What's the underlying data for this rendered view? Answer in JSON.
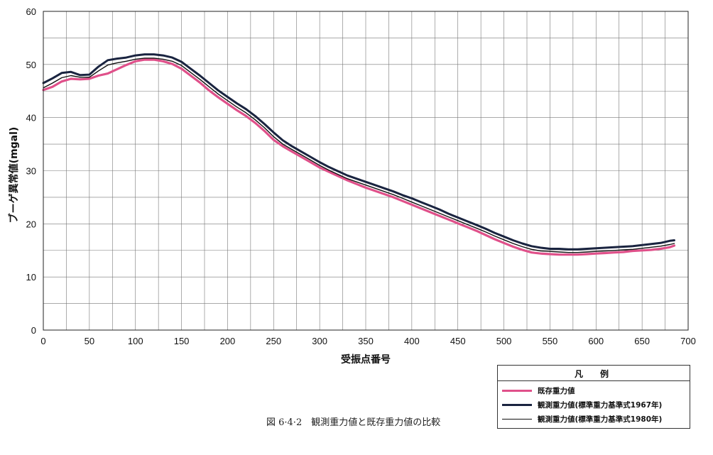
{
  "chart_data": {
    "type": "line",
    "xlabel": "受振点番号",
    "ylabel": "ブーゲ異常値(mgal)",
    "xlim": [
      0,
      700
    ],
    "ylim": [
      0,
      60
    ],
    "xticks": [
      0,
      50,
      100,
      150,
      200,
      250,
      300,
      350,
      400,
      450,
      500,
      550,
      600,
      650,
      700
    ],
    "yticks": [
      0,
      10,
      20,
      30,
      40,
      50,
      60
    ],
    "grid": true,
    "legend_title": "凡　例",
    "legend_position": "bottom-right",
    "series": [
      {
        "name": "既存重力値",
        "color": "#e0508a",
        "x": [
          0,
          10,
          20,
          30,
          40,
          50,
          60,
          70,
          80,
          90,
          100,
          110,
          120,
          130,
          140,
          150,
          160,
          170,
          180,
          190,
          200,
          210,
          220,
          230,
          240,
          250,
          260,
          270,
          280,
          290,
          300,
          310,
          320,
          330,
          340,
          350,
          360,
          370,
          380,
          390,
          400,
          410,
          420,
          430,
          440,
          450,
          460,
          470,
          480,
          490,
          500,
          510,
          520,
          530,
          540,
          550,
          560,
          570,
          580,
          590,
          600,
          610,
          620,
          630,
          640,
          650,
          660,
          670,
          680,
          685
        ],
        "y": [
          45.2,
          45.8,
          46.8,
          47.3,
          47.2,
          47.3,
          47.9,
          48.3,
          49.1,
          49.9,
          50.6,
          50.9,
          50.9,
          50.6,
          50.1,
          49.2,
          47.9,
          46.6,
          45.1,
          43.8,
          42.6,
          41.4,
          40.3,
          39.0,
          37.5,
          35.8,
          34.6,
          33.6,
          32.6,
          31.6,
          30.6,
          29.8,
          29.0,
          28.2,
          27.5,
          26.8,
          26.2,
          25.6,
          25.0,
          24.3,
          23.6,
          22.9,
          22.2,
          21.5,
          20.8,
          20.1,
          19.4,
          18.7,
          17.9,
          17.1,
          16.4,
          15.7,
          15.1,
          14.6,
          14.4,
          14.3,
          14.2,
          14.2,
          14.2,
          14.3,
          14.4,
          14.5,
          14.6,
          14.7,
          14.9,
          15.0,
          15.1,
          15.3,
          15.6,
          15.9
        ]
      },
      {
        "name": "観測重力値(標準重力基準式1967年)",
        "color": "#1a2440",
        "x": [
          0,
          10,
          20,
          30,
          40,
          50,
          60,
          70,
          80,
          90,
          100,
          110,
          120,
          130,
          140,
          150,
          160,
          170,
          180,
          190,
          200,
          210,
          220,
          230,
          240,
          250,
          260,
          270,
          280,
          290,
          300,
          310,
          320,
          330,
          340,
          350,
          360,
          370,
          380,
          390,
          400,
          410,
          420,
          430,
          440,
          450,
          460,
          470,
          480,
          490,
          500,
          510,
          520,
          530,
          540,
          550,
          560,
          570,
          580,
          590,
          600,
          610,
          620,
          630,
          640,
          650,
          660,
          670,
          680,
          685
        ],
        "y": [
          46.5,
          47.4,
          48.4,
          48.6,
          48.0,
          48.1,
          49.6,
          50.8,
          51.1,
          51.3,
          51.7,
          51.9,
          51.9,
          51.7,
          51.3,
          50.5,
          49.2,
          47.9,
          46.5,
          45.1,
          43.9,
          42.7,
          41.6,
          40.3,
          38.8,
          37.2,
          35.7,
          34.6,
          33.6,
          32.6,
          31.6,
          30.7,
          29.9,
          29.1,
          28.5,
          27.9,
          27.3,
          26.7,
          26.1,
          25.4,
          24.8,
          24.1,
          23.4,
          22.7,
          21.9,
          21.2,
          20.5,
          19.8,
          19.1,
          18.3,
          17.6,
          16.9,
          16.3,
          15.8,
          15.5,
          15.3,
          15.3,
          15.2,
          15.2,
          15.3,
          15.4,
          15.5,
          15.6,
          15.7,
          15.8,
          16.0,
          16.2,
          16.4,
          16.8,
          16.9
        ]
      },
      {
        "name": "観測重力値(標準重力基準式1980年)",
        "color": "#111111",
        "x": [
          0,
          10,
          20,
          30,
          40,
          50,
          60,
          70,
          80,
          90,
          100,
          110,
          120,
          130,
          140,
          150,
          160,
          170,
          180,
          190,
          200,
          210,
          220,
          230,
          240,
          250,
          260,
          270,
          280,
          290,
          300,
          310,
          320,
          330,
          340,
          350,
          360,
          370,
          380,
          390,
          400,
          410,
          420,
          430,
          440,
          450,
          460,
          470,
          480,
          490,
          500,
          510,
          520,
          530,
          540,
          550,
          560,
          570,
          580,
          590,
          600,
          610,
          620,
          630,
          640,
          650,
          660,
          670,
          680,
          685
        ],
        "y": [
          45.6,
          46.5,
          47.5,
          47.9,
          47.6,
          47.6,
          48.8,
          49.9,
          50.3,
          50.6,
          51.0,
          51.2,
          51.2,
          51.0,
          50.6,
          49.8,
          48.5,
          47.2,
          45.8,
          44.4,
          43.2,
          42.0,
          40.9,
          39.6,
          38.1,
          36.4,
          35.0,
          34.0,
          33.0,
          32.0,
          31.0,
          30.1,
          29.3,
          28.5,
          27.9,
          27.3,
          26.7,
          26.1,
          25.5,
          24.8,
          24.1,
          23.4,
          22.7,
          22.0,
          21.3,
          20.6,
          19.9,
          19.2,
          18.5,
          17.7,
          17.0,
          16.3,
          15.7,
          15.2,
          14.9,
          14.8,
          14.7,
          14.6,
          14.6,
          14.7,
          14.8,
          14.9,
          15.0,
          15.1,
          15.2,
          15.4,
          15.6,
          15.8,
          16.1,
          16.3
        ]
      }
    ]
  },
  "caption": "図 6·4·2　観測重力値と既存重力値の比較"
}
